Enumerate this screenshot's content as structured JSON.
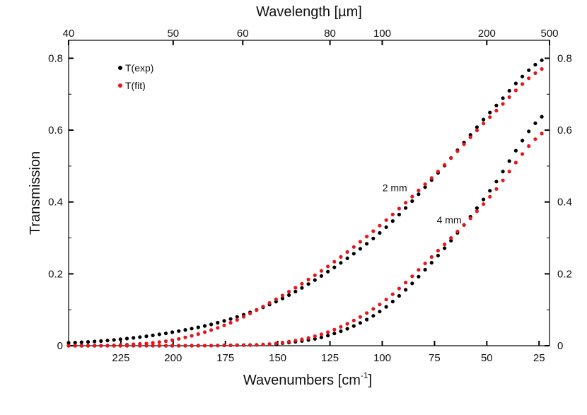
{
  "chart_data": {
    "type": "scatter",
    "title": "",
    "xlabel": "Wavenumbers [cm",
    "xlabel_sup": "-1",
    "xlabel_suffix": "]",
    "ylabel": "Transmission",
    "x2label": "Wavelength [µm]",
    "xlim": [
      250,
      20
    ],
    "ylim": [
      0,
      0.85
    ],
    "x_reversed": true,
    "grid": false,
    "legend_position": "top-left",
    "x_ticks": [
      {
        "value": 225,
        "label": "225"
      },
      {
        "value": 200,
        "label": "200"
      },
      {
        "value": 175,
        "label": "175"
      },
      {
        "value": 150,
        "label": "150"
      },
      {
        "value": 125,
        "label": "125"
      },
      {
        "value": 100,
        "label": "100"
      },
      {
        "value": 75,
        "label": "75"
      },
      {
        "value": 50,
        "label": "50"
      },
      {
        "value": 25,
        "label": "25"
      }
    ],
    "y_ticks": [
      {
        "value": 0,
        "label": "0"
      },
      {
        "value": 0.2,
        "label": "0.2"
      },
      {
        "value": 0.4,
        "label": "0.4"
      },
      {
        "value": 0.6,
        "label": "0.6"
      },
      {
        "value": 0.8,
        "label": "0.8"
      }
    ],
    "x2_ticks": [
      {
        "value": 250,
        "label": "40"
      },
      {
        "value": 200,
        "label": "50"
      },
      {
        "value": 166.7,
        "label": "60"
      },
      {
        "value": 125,
        "label": "80"
      },
      {
        "value": 100,
        "label": "100"
      },
      {
        "value": 50,
        "label": "200"
      },
      {
        "value": 20,
        "label": "500"
      }
    ],
    "series": [
      {
        "name": "T(exp)",
        "color": "#000000",
        "group": "2 mm",
        "points": [
          [
            250,
            0.008
          ],
          [
            225,
            0.018
          ],
          [
            200,
            0.038
          ],
          [
            175,
            0.07
          ],
          [
            150,
            0.125
          ],
          [
            125,
            0.21
          ],
          [
            100,
            0.32
          ],
          [
            75,
            0.47
          ],
          [
            50,
            0.64
          ],
          [
            22,
            0.8
          ]
        ]
      },
      {
        "name": "T(fit)",
        "color": "#e8161b",
        "group": "2 mm",
        "points": [
          [
            250,
            0.0
          ],
          [
            225,
            0.002
          ],
          [
            200,
            0.016
          ],
          [
            175,
            0.058
          ],
          [
            150,
            0.132
          ],
          [
            125,
            0.225
          ],
          [
            100,
            0.34
          ],
          [
            75,
            0.475
          ],
          [
            50,
            0.628
          ],
          [
            22,
            0.775
          ]
        ]
      },
      {
        "name": "T(exp)",
        "color": "#000000",
        "group": "4 mm",
        "points": [
          [
            250,
            0.0
          ],
          [
            200,
            0.0
          ],
          [
            175,
            0.001
          ],
          [
            150,
            0.006
          ],
          [
            125,
            0.03
          ],
          [
            100,
            0.1
          ],
          [
            75,
            0.24
          ],
          [
            50,
            0.42
          ],
          [
            22,
            0.645
          ]
        ]
      },
      {
        "name": "T(fit)",
        "color": "#e8161b",
        "group": "4 mm",
        "points": [
          [
            250,
            0.0
          ],
          [
            200,
            0.0
          ],
          [
            175,
            0.001
          ],
          [
            150,
            0.007
          ],
          [
            125,
            0.04
          ],
          [
            100,
            0.12
          ],
          [
            75,
            0.255
          ],
          [
            50,
            0.405
          ],
          [
            22,
            0.597
          ]
        ]
      }
    ],
    "legend": [
      {
        "label": "T(exp)",
        "color": "#000000"
      },
      {
        "label": "T(fit)",
        "color": "#e8161b"
      }
    ],
    "annotations": [
      {
        "text": "2 mm",
        "x": 94,
        "y": 0.43
      },
      {
        "text": "4 mm",
        "x": 68,
        "y": 0.34
      }
    ]
  }
}
